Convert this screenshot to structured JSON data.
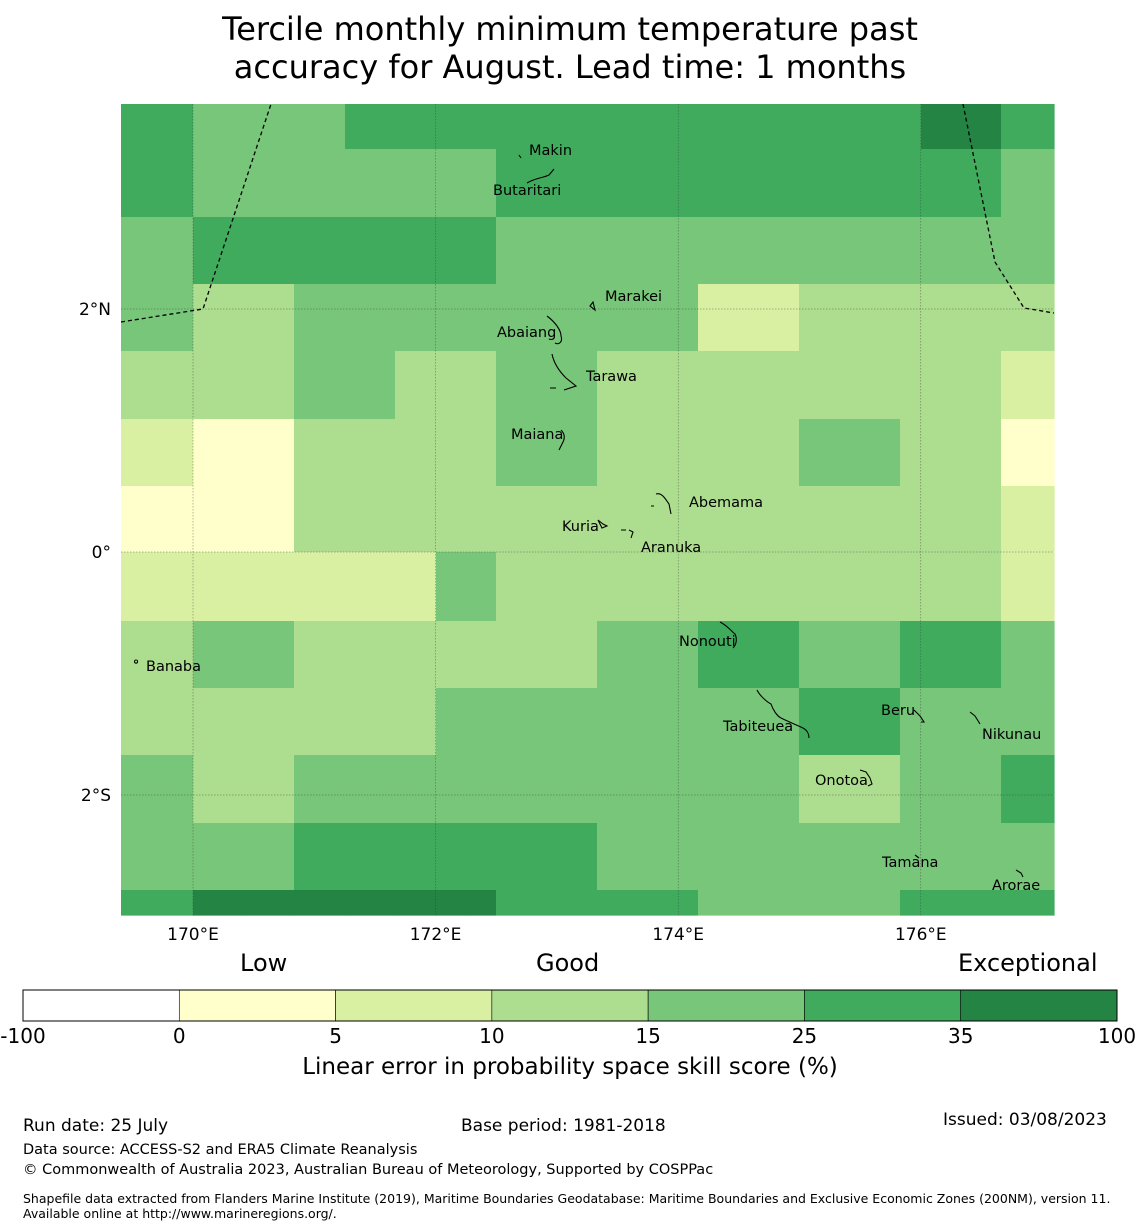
{
  "title_line1": "Tercile monthly minimum temperature past",
  "title_line2": "accuracy for August. Lead time: 1 months",
  "map": {
    "lat_labels": [
      {
        "value": 2,
        "text": "2°N"
      },
      {
        "value": 0,
        "text": "0°"
      },
      {
        "value": -2,
        "text": "2°S"
      }
    ],
    "lon_labels": [
      {
        "value": 170,
        "text": "170°E"
      },
      {
        "value": 172,
        "text": "172°E"
      },
      {
        "value": 174,
        "text": "174°E"
      },
      {
        "value": 176,
        "text": "176°E"
      }
    ],
    "places": [
      "Makin",
      "Butaritari",
      "Marakei",
      "Abaiang",
      "Tarawa",
      "Maiana",
      "Abemama",
      "Kuria",
      "Aranuka",
      "Nonouti",
      "Banaba",
      "Tabiteuea",
      "Beru",
      "Nikunau",
      "Onotoa",
      "Tamana",
      "Arorae"
    ],
    "grid_classes": [
      [
        5,
        4,
        4,
        4,
        5,
        5,
        5,
        5,
        5,
        5,
        5,
        5,
        5,
        5,
        5,
        5,
        5,
        5,
        6,
        6,
        5
      ],
      [
        5,
        4,
        4,
        4,
        4,
        4,
        4,
        4,
        5,
        5,
        5,
        5,
        5,
        5,
        5,
        5,
        5,
        5,
        5,
        5,
        4
      ],
      [
        4,
        5,
        5,
        5,
        5,
        5,
        5,
        5,
        4,
        4,
        4,
        4,
        4,
        4,
        4,
        4,
        4,
        4,
        4,
        4,
        4
      ],
      [
        4,
        3,
        3,
        4,
        4,
        4,
        4,
        4,
        4,
        4,
        4,
        4,
        4,
        2,
        2,
        3,
        3,
        3,
        3,
        3,
        3
      ],
      [
        4,
        3,
        3,
        4,
        4,
        4,
        4,
        4,
        4,
        4,
        4,
        4,
        4,
        2,
        2,
        3,
        3,
        3,
        3,
        3,
        3
      ],
      [
        3,
        3,
        3,
        4,
        4,
        3,
        3,
        3,
        4,
        4,
        3,
        3,
        3,
        3,
        3,
        3,
        3,
        3,
        3,
        3,
        2
      ],
      [
        2,
        1,
        1,
        3,
        3,
        3,
        3,
        3,
        4,
        4,
        3,
        3,
        3,
        3,
        3,
        4,
        4,
        3,
        3,
        3,
        1
      ],
      [
        1,
        1,
        1,
        3,
        3,
        3,
        3,
        3,
        3,
        3,
        3,
        3,
        3,
        3,
        3,
        3,
        3,
        3,
        3,
        3,
        2
      ],
      [
        2,
        2,
        2,
        2,
        2,
        2,
        4,
        4,
        3,
        3,
        3,
        3,
        3,
        3,
        3,
        3,
        3,
        3,
        3,
        3,
        2
      ],
      [
        3,
        4,
        4,
        3,
        3,
        3,
        3,
        3,
        3,
        3,
        4,
        4,
        4,
        5,
        5,
        4,
        4,
        5,
        5,
        5,
        4
      ],
      [
        3,
        3,
        3,
        3,
        3,
        3,
        4,
        4,
        4,
        4,
        4,
        4,
        4,
        4,
        4,
        5,
        5,
        4,
        4,
        4,
        4
      ],
      [
        4,
        3,
        3,
        4,
        4,
        4,
        4,
        4,
        4,
        4,
        4,
        4,
        4,
        4,
        4,
        3,
        3,
        4,
        4,
        4,
        5
      ],
      [
        4,
        4,
        4,
        5,
        5,
        5,
        5,
        5,
        5,
        5,
        4,
        4,
        4,
        4,
        4,
        4,
        4,
        4,
        4,
        4,
        4
      ],
      [
        5,
        6,
        6,
        6,
        6,
        6,
        6,
        6,
        5,
        5,
        5,
        5,
        5,
        4,
        4,
        4,
        4,
        5,
        5,
        5,
        5
      ]
    ]
  },
  "colorbar": {
    "caption_low": "Low",
    "caption_good": "Good",
    "caption_exceptional": "Exceptional",
    "boundaries": [
      "-100",
      "0",
      "5",
      "10",
      "15",
      "25",
      "35",
      "100"
    ],
    "colors": [
      "#ffffff",
      "#ffffcc",
      "#d9f0a3",
      "#addd8e",
      "#78c679",
      "#41ab5d",
      "#238443"
    ],
    "label": "Linear error in probability space skill score (%)"
  },
  "footer": {
    "run_date": "Run date: 25 July",
    "base_period": "Base period: 1981-2018",
    "issued": "Issued: 03/08/2023",
    "data_source": "Data source: ACCESS-S2 and ERA5 Climate Reanalysis",
    "copyright": "© Commonwealth of Australia 2023, Australian Bureau of Meteorology, Supported by COSPPac",
    "shapefile": "Shapefile data extracted from Flanders Marine Institute (2019), Maritime Boundaries Geodatabase: Maritime Boundaries and Exclusive Economic Zones (200NM), version 11. Available online at http://www.marineregions.org/."
  }
}
